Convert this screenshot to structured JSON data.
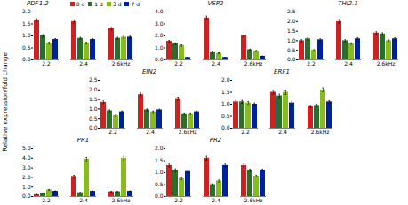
{
  "chart_data": [
    {
      "type": "bar",
      "title": "PDF1.2",
      "ylabel": "Relative expression/fold change",
      "legend": "upper right",
      "categories": [
        "2.2",
        "2.4",
        "2.6kHz"
      ],
      "series": [
        {
          "name": "0 d",
          "color": "#cc2222",
          "values": [
            1.65,
            1.6,
            1.3
          ],
          "errors": [
            0.07,
            0.07,
            0.05
          ]
        },
        {
          "name": "1 d",
          "color": "#2a6e2a",
          "values": [
            1.0,
            0.9,
            0.9
          ],
          "errors": [
            0.05,
            0.04,
            0.04
          ]
        },
        {
          "name": "3 d",
          "color": "#88bb22",
          "values": [
            0.7,
            0.7,
            0.95
          ],
          "errors": [
            0.04,
            0.04,
            0.04
          ]
        },
        {
          "name": "7 d",
          "color": "#002299",
          "values": [
            0.85,
            0.85,
            0.95
          ],
          "errors": [
            0.04,
            0.04,
            0.04
          ]
        }
      ],
      "ylim": [
        0,
        2
      ],
      "yticks": [
        0,
        0.5,
        1,
        1.5,
        2
      ]
    },
    {
      "type": "bar",
      "title": "VSP2",
      "categories": [
        "2.2",
        "2.4",
        "2.6kHz"
      ],
      "series": [
        {
          "name": "0 d",
          "color": "#cc2222",
          "values": [
            1.55,
            3.5,
            2.0
          ],
          "errors": [
            0.08,
            0.15,
            0.08
          ]
        },
        {
          "name": "1 d",
          "color": "#2a6e2a",
          "values": [
            1.35,
            0.6,
            0.85
          ],
          "errors": [
            0.07,
            0.05,
            0.05
          ]
        },
        {
          "name": "3 d",
          "color": "#88bb22",
          "values": [
            1.2,
            0.55,
            0.75
          ],
          "errors": [
            0.06,
            0.04,
            0.04
          ]
        },
        {
          "name": "7 d",
          "color": "#002299",
          "values": [
            0.2,
            0.2,
            0.3
          ],
          "errors": [
            0.02,
            0.02,
            0.02
          ]
        }
      ],
      "ylim": [
        0,
        4
      ],
      "yticks": [
        0,
        1,
        2,
        3,
        4
      ]
    },
    {
      "type": "bar",
      "title": "THI2.1",
      "categories": [
        "2.2",
        "2.4",
        "2.6kHz"
      ],
      "series": [
        {
          "name": "0 d",
          "color": "#cc2222",
          "values": [
            1.0,
            2.0,
            1.4
          ],
          "errors": [
            0.05,
            0.1,
            0.07
          ]
        },
        {
          "name": "1 d",
          "color": "#2a6e2a",
          "values": [
            1.1,
            1.0,
            1.35
          ],
          "errors": [
            0.06,
            0.05,
            0.06
          ]
        },
        {
          "name": "3 d",
          "color": "#88bb22",
          "values": [
            0.5,
            0.85,
            1.0
          ],
          "errors": [
            0.03,
            0.04,
            0.04
          ]
        },
        {
          "name": "7 d",
          "color": "#002299",
          "values": [
            1.05,
            1.1,
            1.1
          ],
          "errors": [
            0.05,
            0.05,
            0.05
          ]
        }
      ],
      "ylim": [
        0,
        2.5
      ],
      "yticks": [
        0,
        0.5,
        1,
        1.5,
        2,
        2.5
      ]
    },
    {
      "type": "bar",
      "title": "EIN2",
      "categories": [
        "2.2",
        "2.4",
        "2.6kHz"
      ],
      "series": [
        {
          "name": "0 d",
          "color": "#cc2222",
          "values": [
            1.35,
            1.75,
            1.55
          ],
          "errors": [
            0.07,
            0.08,
            0.07
          ]
        },
        {
          "name": "1 d",
          "color": "#2a6e2a",
          "values": [
            0.9,
            0.95,
            0.75
          ],
          "errors": [
            0.05,
            0.05,
            0.04
          ]
        },
        {
          "name": "3 d",
          "color": "#88bb22",
          "values": [
            0.65,
            0.85,
            0.75
          ],
          "errors": [
            0.04,
            0.04,
            0.04
          ]
        },
        {
          "name": "7 d",
          "color": "#002299",
          "values": [
            0.85,
            0.95,
            0.85
          ],
          "errors": [
            0.04,
            0.04,
            0.04
          ]
        }
      ],
      "ylim": [
        0,
        2.5
      ],
      "yticks": [
        0,
        0.5,
        1,
        1.5,
        2,
        2.5
      ]
    },
    {
      "type": "bar",
      "title": "ERF1",
      "categories": [
        "2.2",
        "2.4",
        "2.6kHz"
      ],
      "series": [
        {
          "name": "0 d",
          "color": "#cc2222",
          "values": [
            1.1,
            1.5,
            0.9
          ],
          "errors": [
            0.06,
            0.08,
            0.05
          ]
        },
        {
          "name": "1 d",
          "color": "#2a6e2a",
          "values": [
            1.1,
            1.35,
            0.95
          ],
          "errors": [
            0.06,
            0.07,
            0.05
          ]
        },
        {
          "name": "3 d",
          "color": "#88bb22",
          "values": [
            1.05,
            1.5,
            1.6
          ],
          "errors": [
            0.06,
            0.09,
            0.08
          ]
        },
        {
          "name": "7 d",
          "color": "#002299",
          "values": [
            1.0,
            1.05,
            1.1
          ],
          "errors": [
            0.05,
            0.05,
            0.05
          ]
        }
      ],
      "ylim": [
        0,
        2
      ],
      "yticks": [
        0,
        0.5,
        1,
        1.5,
        2
      ]
    },
    {
      "type": "bar",
      "title": "PR1",
      "categories": [
        "2.2",
        "2.4",
        "2.6kHz"
      ],
      "series": [
        {
          "name": "0 d",
          "color": "#cc2222",
          "values": [
            0.2,
            2.1,
            0.5
          ],
          "errors": [
            0.02,
            0.12,
            0.04
          ]
        },
        {
          "name": "1 d",
          "color": "#2a6e2a",
          "values": [
            0.35,
            0.4,
            0.5
          ],
          "errors": [
            0.03,
            0.03,
            0.04
          ]
        },
        {
          "name": "3 d",
          "color": "#88bb22",
          "values": [
            0.7,
            3.9,
            4.0
          ],
          "errors": [
            0.05,
            0.18,
            0.18
          ]
        },
        {
          "name": "7 d",
          "color": "#002299",
          "values": [
            0.55,
            0.55,
            0.55
          ],
          "errors": [
            0.04,
            0.04,
            0.04
          ]
        }
      ],
      "ylim": [
        0,
        5
      ],
      "yticks": [
        0,
        1,
        2,
        3,
        4,
        5
      ]
    },
    {
      "type": "bar",
      "title": "PR2",
      "categories": [
        "2.2",
        "2.4",
        "2.6kHz"
      ],
      "series": [
        {
          "name": "0 d",
          "color": "#cc2222",
          "values": [
            1.3,
            1.6,
            1.3
          ],
          "errors": [
            0.06,
            0.08,
            0.06
          ]
        },
        {
          "name": "1 d",
          "color": "#2a6e2a",
          "values": [
            1.1,
            0.5,
            1.1
          ],
          "errors": [
            0.06,
            0.03,
            0.05
          ]
        },
        {
          "name": "3 d",
          "color": "#88bb22",
          "values": [
            0.75,
            0.65,
            0.85
          ],
          "errors": [
            0.04,
            0.04,
            0.04
          ]
        },
        {
          "name": "7 d",
          "color": "#002299",
          "values": [
            1.05,
            1.3,
            1.1
          ],
          "errors": [
            0.05,
            0.06,
            0.05
          ]
        }
      ],
      "ylim": [
        0,
        2
      ],
      "yticks": [
        0,
        0.5,
        1,
        1.5,
        2
      ]
    }
  ]
}
